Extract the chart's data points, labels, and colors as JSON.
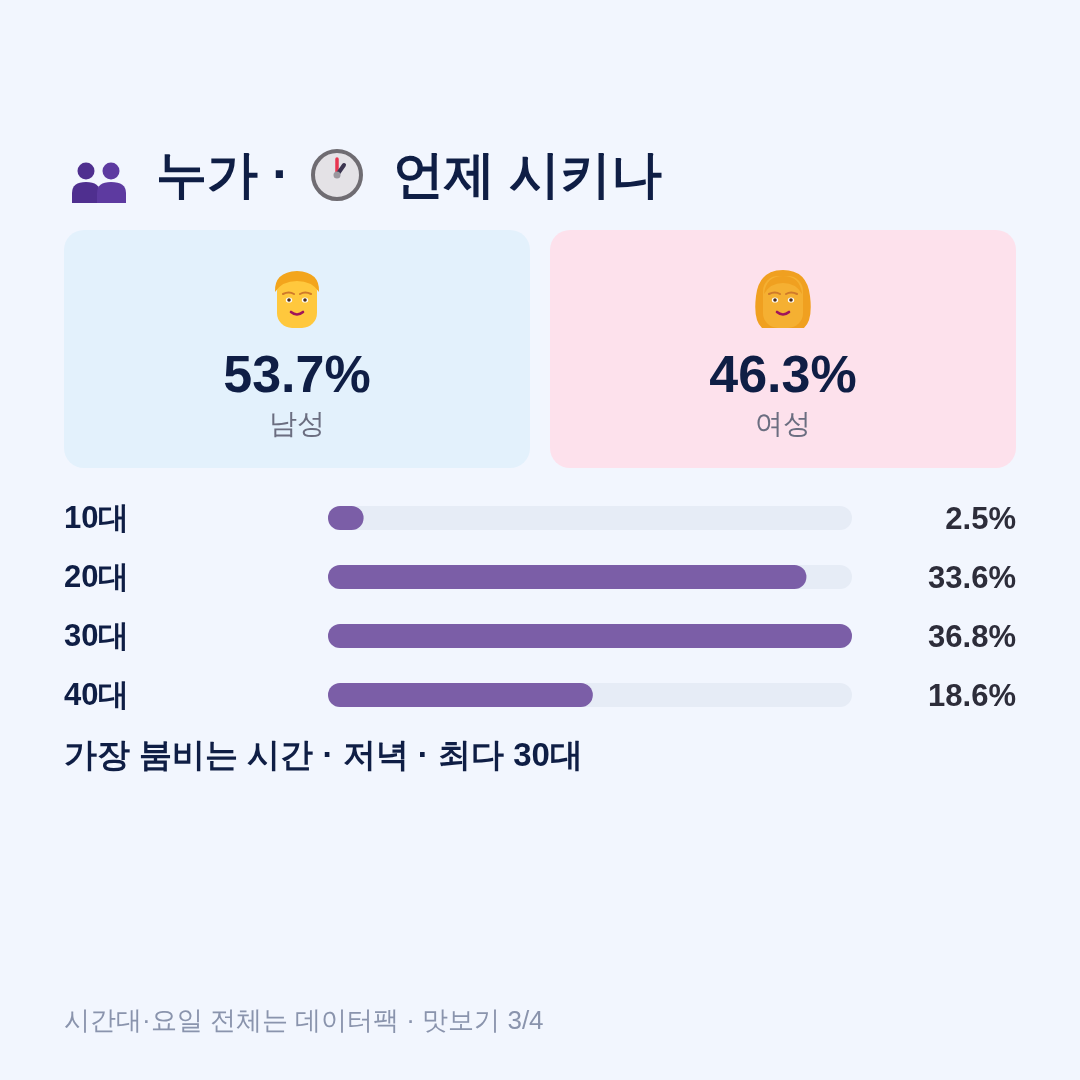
{
  "chart_data": [
    {
      "type": "other",
      "title": "누가 · 언제 시키나",
      "categories": [
        "남성",
        "여성"
      ],
      "value_labels": [
        "53.7%",
        "46.3%"
      ],
      "colors": [
        "#e3f1fc",
        "#fde1ec"
      ]
    },
    {
      "type": "bar",
      "orientation": "horizontal",
      "categories": [
        "10대",
        "20대",
        "30대",
        "40대"
      ],
      "values": [
        2.5,
        33.6,
        36.8,
        18.6
      ],
      "value_labels": [
        "2.5%",
        "33.6%",
        "36.8%",
        "18.6%"
      ],
      "color": "#7b5ea7",
      "annotations": [
        "가장 붐비는 시간 · 저녁 · 최다 30대",
        "시간대·요일 전체는 데이터팩 · 맛보기 3/4"
      ]
    }
  ]
}
